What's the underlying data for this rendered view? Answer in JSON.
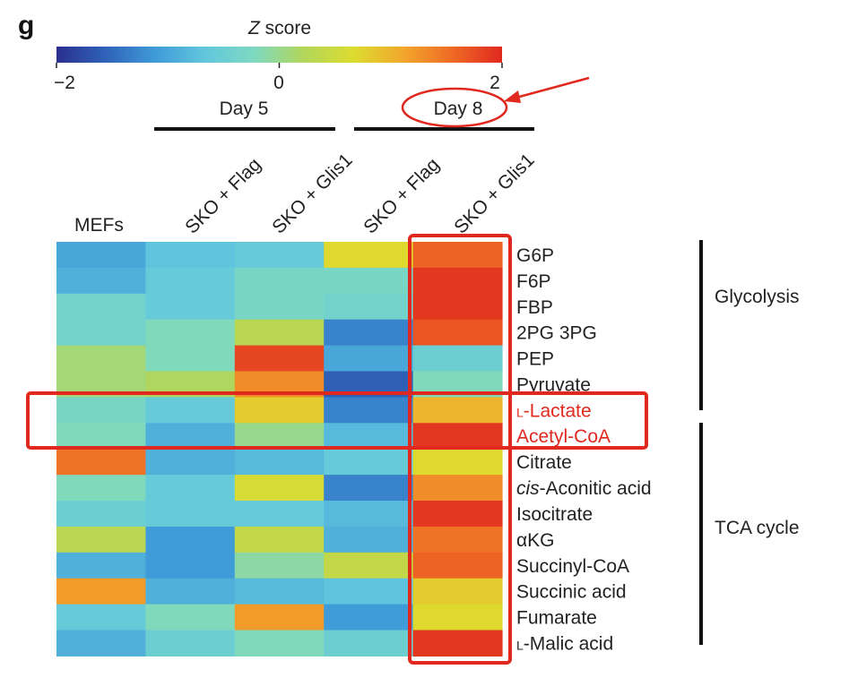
{
  "panel_label": "g",
  "colorbar": {
    "title_italic": "Z",
    "title_rest": " score",
    "min_label": "−2",
    "mid_label": "0",
    "max_label": "2",
    "stops": [
      "#2b2f8e",
      "#2f63b9",
      "#3f9bd8",
      "#62c7dd",
      "#7ed9c0",
      "#b2d65a",
      "#dcdc2f",
      "#f2a72c",
      "#ee6a25",
      "#e0281f"
    ]
  },
  "groups": [
    {
      "label": "Day 5"
    },
    {
      "label": "Day 8"
    }
  ],
  "columns": [
    "MEFs",
    "SKO + Flag",
    "SKO + Glis1",
    "SKO + Flag",
    "SKO + Glis1"
  ],
  "pathways": [
    {
      "label": "Glycolysis"
    },
    {
      "label": "TCA cycle"
    }
  ],
  "highlight_color": "#e0281f",
  "chart_data": {
    "type": "heatmap",
    "title": "Z score",
    "value_range": [
      -2,
      2
    ],
    "columns": [
      "MEFs",
      "SKO + Flag",
      "SKO + Glis1",
      "SKO + Flag",
      "SKO + Glis1"
    ],
    "rows": [
      {
        "prefix": "",
        "italic": "",
        "label": "G6P",
        "highlight": false,
        "values": [
          -1.0,
          -0.7,
          -0.6,
          0.7,
          1.6
        ]
      },
      {
        "prefix": "",
        "italic": "",
        "label": "F6P",
        "highlight": false,
        "values": [
          -0.9,
          -0.6,
          -0.3,
          -0.3,
          1.9
        ]
      },
      {
        "prefix": "",
        "italic": "",
        "label": "FBP",
        "highlight": false,
        "values": [
          -0.4,
          -0.6,
          -0.3,
          -0.4,
          1.9
        ]
      },
      {
        "prefix": "",
        "italic": "",
        "label": "2PG 3PG",
        "highlight": false,
        "values": [
          -0.4,
          -0.2,
          0.3,
          -1.3,
          1.7
        ]
      },
      {
        "prefix": "",
        "italic": "",
        "label": "PEP",
        "highlight": false,
        "values": [
          0.1,
          -0.2,
          1.8,
          -1.0,
          -0.5
        ]
      },
      {
        "prefix": "",
        "italic": "",
        "label": "Pyruvate",
        "highlight": false,
        "values": [
          0.1,
          0.2,
          1.3,
          -1.6,
          -0.2
        ]
      },
      {
        "prefix": "L",
        "italic": "",
        "label": "-Lactate",
        "highlight": true,
        "values": [
          -0.3,
          -0.6,
          0.8,
          -1.3,
          1.0
        ]
      },
      {
        "prefix": "",
        "italic": "",
        "label": "Acetyl-CoA",
        "highlight": true,
        "values": [
          -0.2,
          -0.9,
          0.0,
          -0.8,
          1.9
        ]
      },
      {
        "prefix": "",
        "italic": "",
        "label": "Citrate",
        "highlight": false,
        "values": [
          1.5,
          -0.9,
          -0.8,
          -0.6,
          0.7
        ]
      },
      {
        "prefix": "",
        "italic": "",
        "label": "-Aconitic acid",
        "italic_part": "cis",
        "highlight": false,
        "values": [
          -0.2,
          -0.6,
          0.6,
          -1.3,
          1.3
        ]
      },
      {
        "prefix": "",
        "italic": "",
        "label": "Isocitrate",
        "highlight": false,
        "values": [
          -0.5,
          -0.6,
          -0.6,
          -0.8,
          1.9
        ]
      },
      {
        "prefix": "",
        "italic": "",
        "label": "αKG",
        "highlight": false,
        "values": [
          0.3,
          -1.1,
          0.4,
          -0.9,
          1.5
        ]
      },
      {
        "prefix": "",
        "italic": "",
        "label": "Succinyl-CoA",
        "highlight": false,
        "values": [
          -0.9,
          -1.1,
          -0.1,
          0.4,
          1.6
        ]
      },
      {
        "prefix": "",
        "italic": "",
        "label": "Succinic acid",
        "highlight": false,
        "values": [
          1.2,
          -0.9,
          -0.8,
          -0.7,
          0.8
        ]
      },
      {
        "prefix": "",
        "italic": "",
        "label": "Fumarate",
        "highlight": false,
        "values": [
          -0.6,
          -0.2,
          1.2,
          -1.1,
          0.7
        ]
      },
      {
        "prefix": "L",
        "italic": "",
        "label": "-Malic acid",
        "highlight": false,
        "values": [
          -0.9,
          -0.5,
          -0.2,
          -0.5,
          1.9
        ]
      }
    ]
  }
}
